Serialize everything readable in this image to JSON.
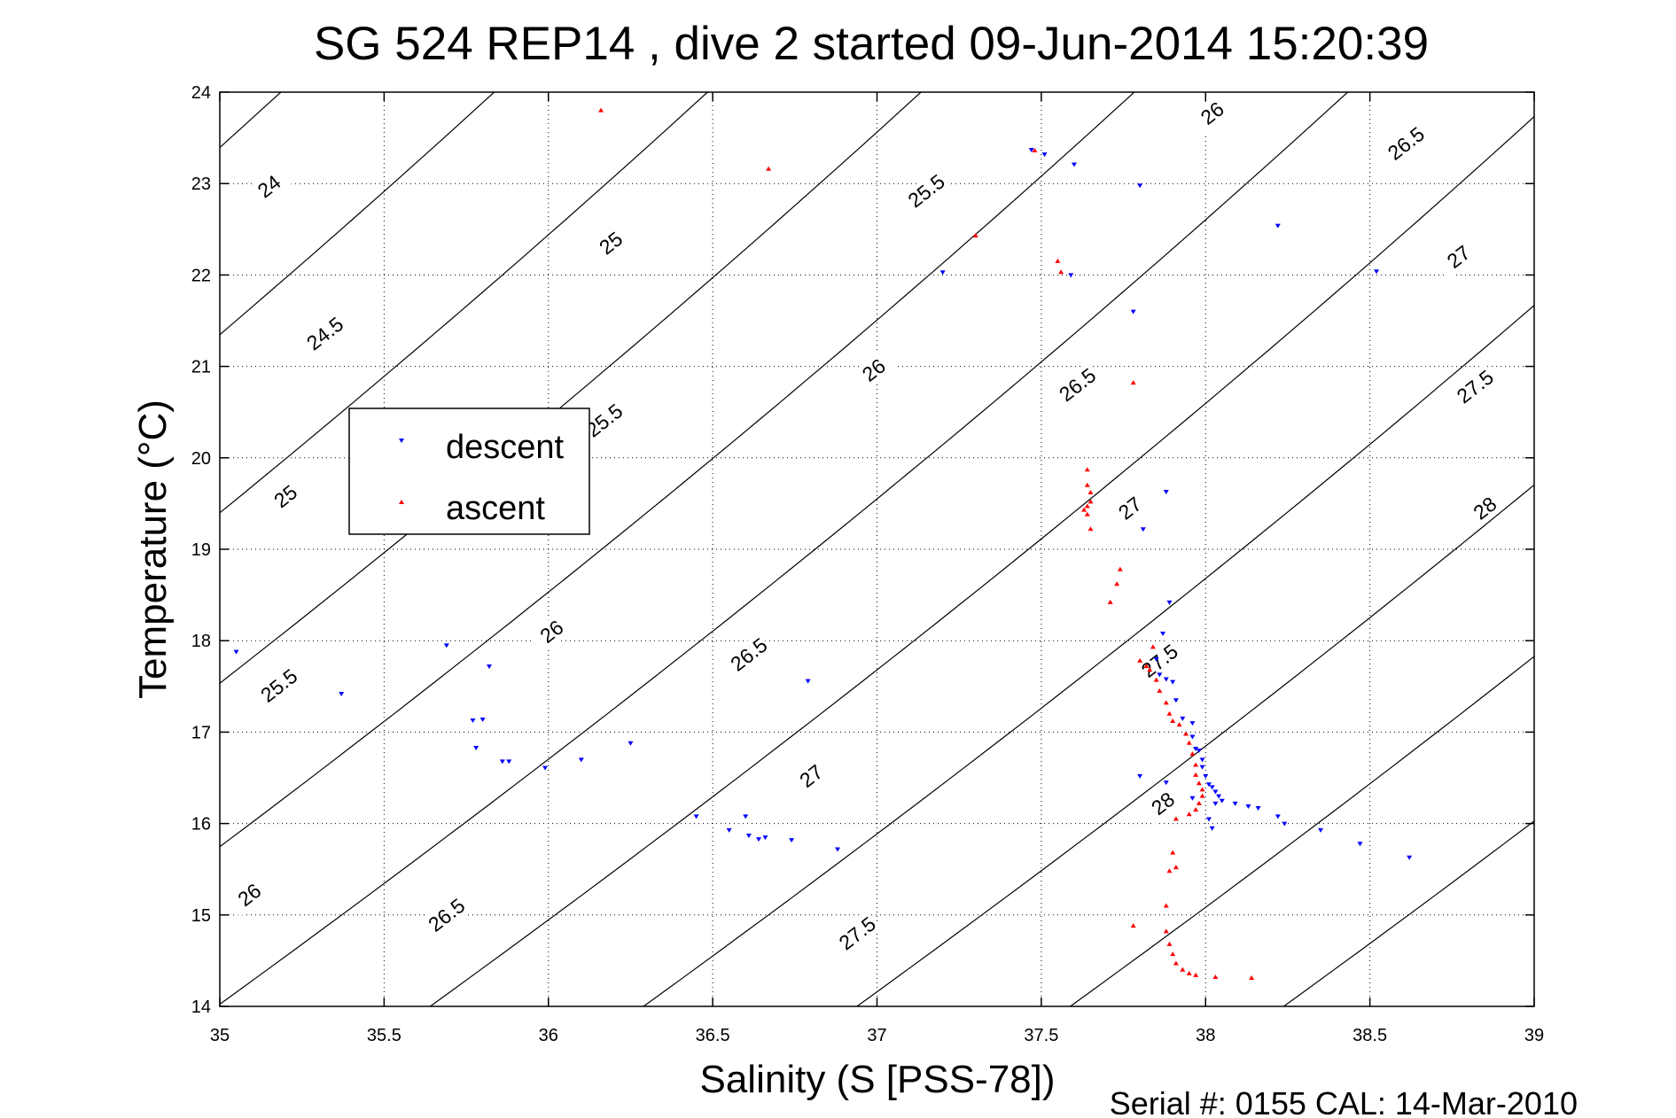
{
  "chart_data": {
    "type": "scatter",
    "title": "SG 524   REP14  , dive 2 started 09-Jun-2014 15:20:39",
    "xlabel": "Salinity (S [PSS-78])",
    "ylabel": "Temperature (°C)",
    "footer": "Serial #: 0155  CAL: 14-Mar-2010",
    "xlim": [
      35,
      39
    ],
    "ylim": [
      14,
      24
    ],
    "x_ticks": [
      "35",
      "35.5",
      "36",
      "36.5",
      "37",
      "37.5",
      "38",
      "38.5",
      "39"
    ],
    "y_ticks": [
      "14",
      "15",
      "16",
      "17",
      "18",
      "19",
      "20",
      "21",
      "22",
      "23",
      "24"
    ],
    "grid": true,
    "legend_position": "left-middle",
    "series": [
      {
        "name": "descent",
        "color": "#0000ff",
        "marker": "triangle-down",
        "points": [
          [
            35.05,
            17.88
          ],
          [
            35.37,
            17.42
          ],
          [
            35.69,
            17.95
          ],
          [
            35.82,
            17.72
          ],
          [
            35.77,
            17.13
          ],
          [
            35.8,
            17.14
          ],
          [
            35.78,
            16.83
          ],
          [
            35.86,
            16.68
          ],
          [
            35.88,
            16.68
          ],
          [
            35.99,
            16.61
          ],
          [
            36.1,
            16.7
          ],
          [
            36.25,
            16.88
          ],
          [
            36.45,
            16.08
          ],
          [
            36.55,
            15.93
          ],
          [
            36.6,
            16.08
          ],
          [
            36.61,
            15.87
          ],
          [
            36.64,
            15.83
          ],
          [
            36.66,
            15.85
          ],
          [
            36.74,
            15.82
          ],
          [
            36.79,
            17.56
          ],
          [
            36.88,
            15.72
          ],
          [
            37.2,
            22.03
          ],
          [
            37.47,
            23.37
          ],
          [
            37.51,
            23.32
          ],
          [
            37.59,
            22.0
          ],
          [
            37.6,
            23.21
          ],
          [
            37.8,
            22.98
          ],
          [
            37.78,
            21.6
          ],
          [
            38.22,
            22.54
          ],
          [
            38.52,
            22.04
          ],
          [
            37.81,
            19.22
          ],
          [
            37.88,
            19.63
          ],
          [
            37.89,
            18.42
          ],
          [
            37.87,
            18.08
          ],
          [
            37.85,
            17.8
          ],
          [
            37.86,
            17.63
          ],
          [
            37.88,
            17.58
          ],
          [
            37.9,
            17.55
          ],
          [
            37.91,
            17.35
          ],
          [
            37.93,
            17.15
          ],
          [
            37.96,
            17.1
          ],
          [
            37.96,
            16.95
          ],
          [
            37.97,
            16.82
          ],
          [
            37.98,
            16.8
          ],
          [
            37.99,
            16.7
          ],
          [
            37.99,
            16.62
          ],
          [
            38.0,
            16.52
          ],
          [
            38.01,
            16.43
          ],
          [
            38.02,
            16.4
          ],
          [
            38.03,
            16.35
          ],
          [
            38.04,
            16.3
          ],
          [
            38.05,
            16.25
          ],
          [
            38.09,
            16.22
          ],
          [
            38.13,
            16.19
          ],
          [
            38.16,
            16.17
          ],
          [
            38.22,
            16.08
          ],
          [
            38.24,
            16.0
          ],
          [
            38.35,
            15.93
          ],
          [
            38.47,
            15.78
          ],
          [
            38.62,
            15.63
          ],
          [
            37.8,
            16.52
          ],
          [
            37.88,
            16.45
          ],
          [
            37.96,
            16.28
          ],
          [
            38.03,
            16.22
          ],
          [
            38.01,
            16.05
          ],
          [
            38.02,
            15.95
          ]
        ]
      },
      {
        "name": "ascent",
        "color": "#ff0000",
        "marker": "triangle-up",
        "points": [
          [
            36.16,
            23.8
          ],
          [
            36.67,
            23.16
          ],
          [
            37.3,
            22.43
          ],
          [
            37.48,
            23.36
          ],
          [
            37.55,
            22.15
          ],
          [
            37.56,
            22.03
          ],
          [
            37.78,
            20.82
          ],
          [
            37.64,
            19.87
          ],
          [
            37.64,
            19.7
          ],
          [
            37.65,
            19.62
          ],
          [
            37.65,
            19.52
          ],
          [
            37.64,
            19.47
          ],
          [
            37.63,
            19.43
          ],
          [
            37.64,
            19.38
          ],
          [
            37.65,
            19.22
          ],
          [
            37.74,
            18.78
          ],
          [
            37.73,
            18.62
          ],
          [
            37.71,
            18.42
          ],
          [
            37.84,
            17.93
          ],
          [
            37.8,
            17.78
          ],
          [
            37.82,
            17.72
          ],
          [
            37.83,
            17.68
          ],
          [
            37.85,
            17.57
          ],
          [
            37.86,
            17.45
          ],
          [
            37.88,
            17.32
          ],
          [
            37.89,
            17.2
          ],
          [
            37.9,
            17.12
          ],
          [
            37.92,
            17.08
          ],
          [
            37.94,
            16.98
          ],
          [
            37.95,
            16.88
          ],
          [
            37.96,
            16.76
          ],
          [
            37.97,
            16.64
          ],
          [
            37.97,
            16.53
          ],
          [
            37.98,
            16.44
          ],
          [
            37.99,
            16.37
          ],
          [
            37.99,
            16.3
          ],
          [
            37.98,
            16.22
          ],
          [
            37.97,
            16.15
          ],
          [
            37.95,
            16.1
          ],
          [
            37.91,
            16.05
          ],
          [
            37.9,
            15.68
          ],
          [
            37.91,
            15.52
          ],
          [
            37.89,
            15.48
          ],
          [
            37.88,
            15.1
          ],
          [
            37.78,
            14.88
          ],
          [
            37.88,
            14.82
          ],
          [
            37.89,
            14.68
          ],
          [
            37.9,
            14.57
          ],
          [
            37.91,
            14.47
          ],
          [
            37.93,
            14.4
          ],
          [
            37.95,
            14.36
          ],
          [
            37.97,
            14.34
          ],
          [
            38.03,
            14.32
          ],
          [
            38.14,
            14.31
          ]
        ]
      }
    ],
    "isopycnal_labels": [
      {
        "text": "24",
        "s": 35.15,
        "t": 22.97
      },
      {
        "text": "24.5",
        "s": 35.32,
        "t": 21.36
      },
      {
        "text": "25",
        "s": 36.19,
        "t": 22.35
      },
      {
        "text": "25",
        "s": 35.2,
        "t": 19.58
      },
      {
        "text": "25.5",
        "s": 37.15,
        "t": 22.92
      },
      {
        "text": "25.5",
        "s": 36.17,
        "t": 20.41
      },
      {
        "text": "25.5",
        "s": 35.18,
        "t": 17.51
      },
      {
        "text": "26",
        "s": 38.02,
        "t": 23.77
      },
      {
        "text": "26",
        "s": 36.99,
        "t": 20.96
      },
      {
        "text": "26",
        "s": 36.01,
        "t": 18.1
      },
      {
        "text": "26",
        "s": 35.09,
        "t": 15.22
      },
      {
        "text": "26.5",
        "s": 38.61,
        "t": 23.44
      },
      {
        "text": "26.5",
        "s": 37.61,
        "t": 20.8
      },
      {
        "text": "26.5",
        "s": 36.61,
        "t": 17.85
      },
      {
        "text": "26.5",
        "s": 35.69,
        "t": 15.0
      },
      {
        "text": "27",
        "s": 38.77,
        "t": 22.2
      },
      {
        "text": "27",
        "s": 37.77,
        "t": 19.45
      },
      {
        "text": "27",
        "s": 36.8,
        "t": 16.52
      },
      {
        "text": "27.5",
        "s": 38.82,
        "t": 20.78
      },
      {
        "text": "27.5",
        "s": 37.86,
        "t": 17.78
      },
      {
        "text": "27.5",
        "s": 36.94,
        "t": 14.8
      },
      {
        "text": "28",
        "s": 38.85,
        "t": 19.45
      },
      {
        "text": "28",
        "s": 37.87,
        "t": 16.22
      }
    ]
  }
}
